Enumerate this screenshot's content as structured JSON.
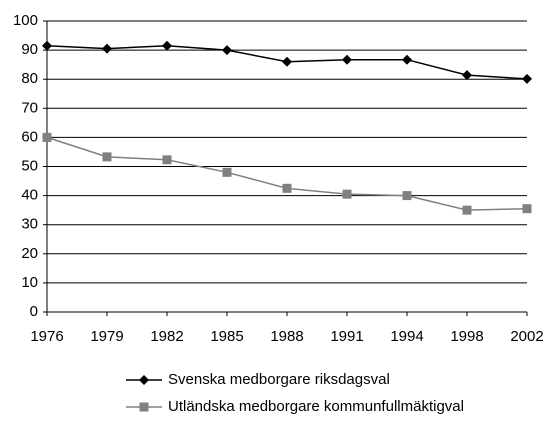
{
  "chart_data": {
    "type": "line",
    "categories": [
      "1976",
      "1979",
      "1982",
      "1985",
      "1988",
      "1991",
      "1994",
      "1998",
      "2002"
    ],
    "series": [
      {
        "name": "Svenska medborgare riksdagsval",
        "color": "#000000",
        "marker": "diamond",
        "values": [
          91.5,
          90.5,
          91.5,
          90,
          86,
          86.7,
          86.7,
          81.4,
          80.1
        ]
      },
      {
        "name": "Utländska medborgare kommunfullmäktigval",
        "color": "#808080",
        "marker": "square",
        "values": [
          60,
          53.3,
          52.3,
          48,
          42.5,
          40.5,
          40,
          35,
          35.5
        ]
      }
    ],
    "ylim": [
      0,
      100
    ],
    "yticks": [
      0,
      10,
      20,
      30,
      40,
      50,
      60,
      70,
      80,
      90,
      100
    ],
    "grid": true
  }
}
